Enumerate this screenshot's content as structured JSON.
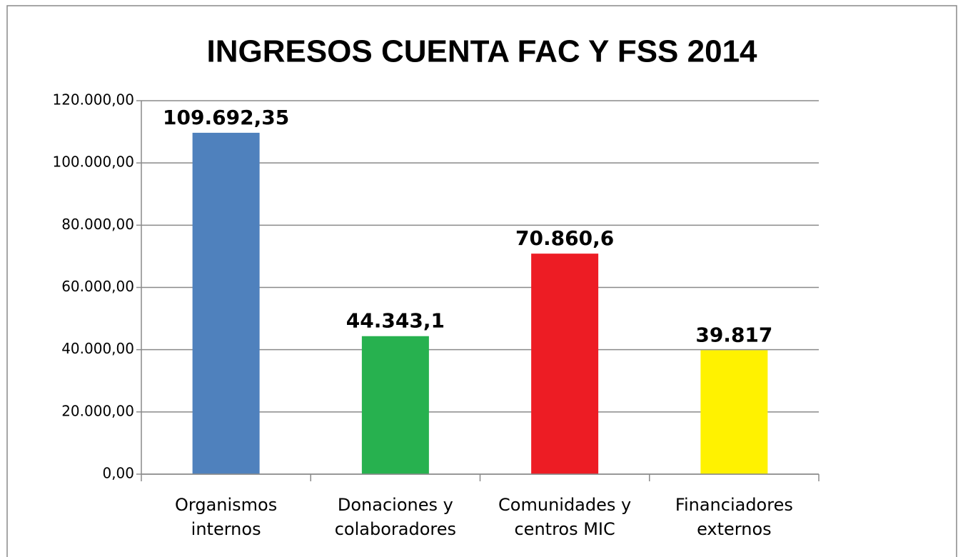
{
  "chart_data": {
    "type": "bar",
    "title": "INGRESOS CUENTA FAC Y FSS 2014",
    "categories": [
      "Organismos internos",
      "Donaciones y colaboradores",
      "Comunidades y centros MIC",
      "Financiadores externos"
    ],
    "values": [
      109692.35,
      44343.1,
      70860.6,
      39817
    ],
    "value_labels": [
      "109.692,35",
      "44.343,1",
      "70.860,6",
      "39.817"
    ],
    "colors": [
      "#4f81bd",
      "#27b14f",
      "#ed1c24",
      "#fff200"
    ],
    "ylim": [
      0,
      120000
    ],
    "yticks": [
      {
        "value": 0,
        "label": "0,00"
      },
      {
        "value": 20000,
        "label": "20.000,00"
      },
      {
        "value": 40000,
        "label": "40.000,00"
      },
      {
        "value": 60000,
        "label": "60.000,00"
      },
      {
        "value": 80000,
        "label": "80.000,00"
      },
      {
        "value": 100000,
        "label": "100.000,00"
      },
      {
        "value": 120000,
        "label": "120.000,00"
      }
    ],
    "grid": true
  }
}
